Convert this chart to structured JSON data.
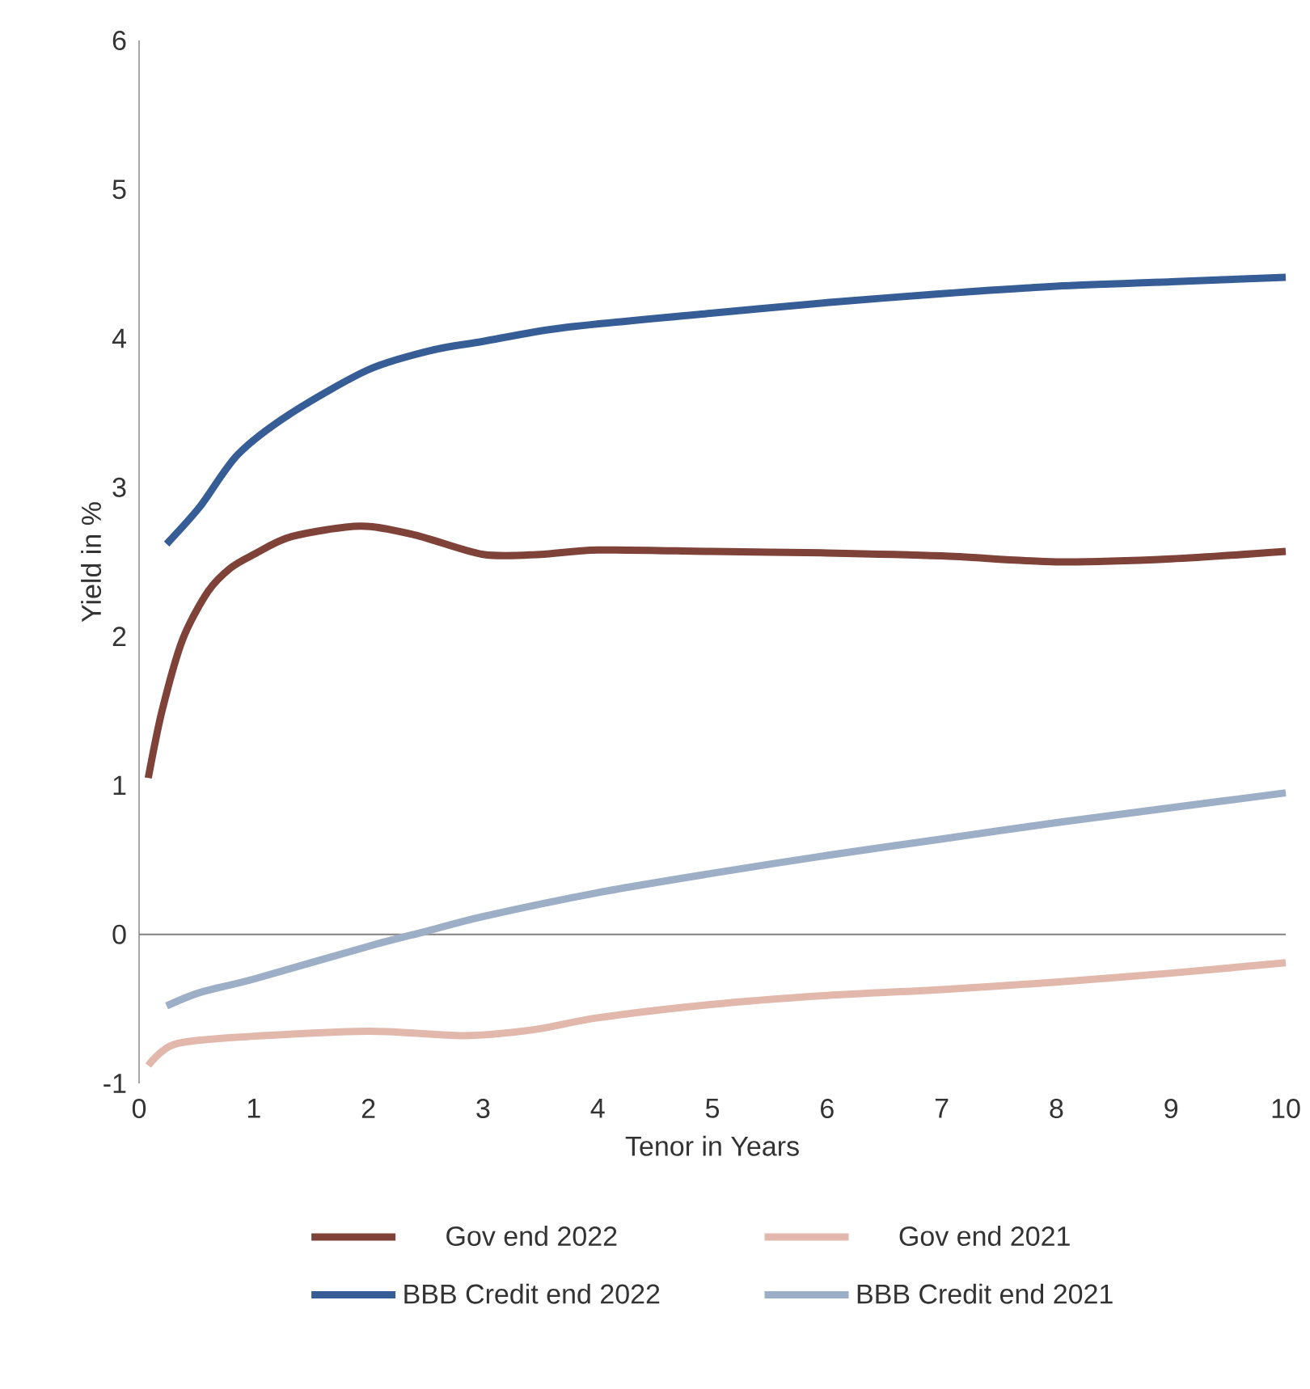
{
  "chart_data": {
    "type": "line",
    "xlabel": "Tenor in Years",
    "ylabel": "Yield in %",
    "xlim": [
      0,
      10
    ],
    "xticks": [
      0,
      1,
      2,
      3,
      4,
      5,
      6,
      7,
      8,
      9,
      10
    ],
    "ylim": [
      -1,
      6
    ],
    "yticks": [
      -1,
      0,
      1,
      2,
      3,
      4,
      5,
      6
    ],
    "grid": false,
    "legend": "bottom",
    "marker": "none",
    "line_style": "solid",
    "ref_lines": [
      {
        "axis": "y",
        "value": 0,
        "color": "#808080"
      }
    ],
    "series": [
      {
        "name": "Gov end 2022",
        "color": "#7f4238",
        "x": [
          0.08,
          0.2,
          0.38,
          0.6,
          0.8,
          1.0,
          1.33,
          1.93,
          2.41,
          3.0,
          3.5,
          4,
          5,
          6,
          7,
          8,
          9,
          10
        ],
        "values": [
          1.05,
          1.5,
          1.98,
          2.3,
          2.46,
          2.55,
          2.67,
          2.74,
          2.68,
          2.55,
          2.55,
          2.58,
          2.57,
          2.56,
          2.54,
          2.5,
          2.52,
          2.57
        ]
      },
      {
        "name": "Gov end 2021",
        "color": "#e3b8ac",
        "x": [
          0.08,
          0.3,
          0.86,
          2,
          2.83,
          3.44,
          4,
          5,
          6,
          7,
          8,
          9,
          10
        ],
        "values": [
          -0.88,
          -0.74,
          -0.69,
          -0.65,
          -0.68,
          -0.64,
          -0.56,
          -0.47,
          -0.41,
          -0.37,
          -0.32,
          -0.26,
          -0.19
        ]
      },
      {
        "name": "BBB Credit end 2022",
        "color": "#365d96",
        "x": [
          0.24,
          0.53,
          0.86,
          1.33,
          2,
          2.55,
          3,
          3.68,
          5,
          6,
          7,
          8,
          9,
          10
        ],
        "values": [
          2.62,
          2.87,
          3.22,
          3.5,
          3.79,
          3.92,
          3.98,
          4.07,
          4.17,
          4.24,
          4.3,
          4.35,
          4.38,
          4.41
        ]
      },
      {
        "name": "BBB Credit end 2021",
        "color": "#9dafc6",
        "x": [
          0.24,
          0.53,
          1,
          2,
          2.5,
          3,
          4,
          5,
          6,
          7,
          8,
          9,
          10
        ],
        "values": [
          -0.48,
          -0.39,
          -0.3,
          -0.08,
          0.02,
          0.12,
          0.28,
          0.41,
          0.53,
          0.64,
          0.75,
          0.85,
          0.95
        ]
      }
    ]
  }
}
